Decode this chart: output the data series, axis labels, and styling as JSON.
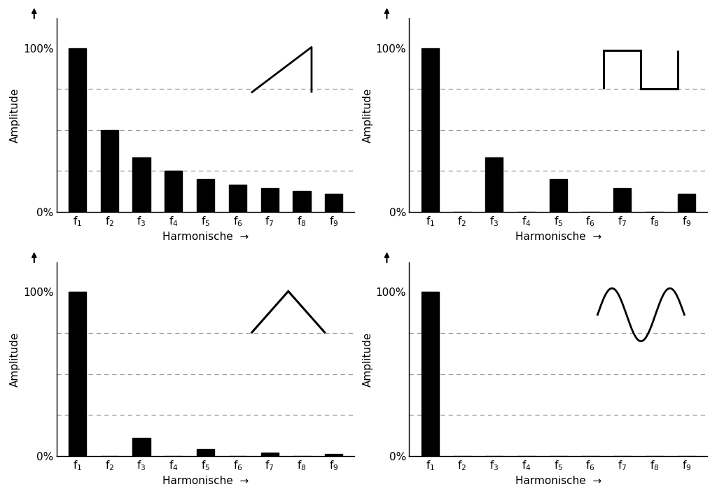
{
  "categories": [
    "f$_1$",
    "f$_2$",
    "f$_3$",
    "f$_4$",
    "f$_5$",
    "f$_6$",
    "f$_7$",
    "f$_8$",
    "f$_9$"
  ],
  "sawtooth": [
    100,
    50,
    33.3,
    25,
    20,
    16.7,
    14.3,
    12.5,
    11.1
  ],
  "square": [
    100,
    0,
    33.3,
    0,
    20,
    0,
    14.3,
    0,
    11.1
  ],
  "triangle": [
    100,
    0,
    11.1,
    0,
    4.0,
    0,
    2.0,
    0,
    1.2
  ],
  "sine": [
    100,
    0,
    0,
    0,
    0,
    0,
    0,
    0,
    0
  ],
  "ylabel": "Amplitude",
  "xlabel": "Harmonische",
  "grid_lines": [
    25,
    50,
    75
  ],
  "bar_color": "#000000",
  "bg_color": "#ffffff",
  "label_fontsize": 11,
  "tick_fontsize": 11
}
